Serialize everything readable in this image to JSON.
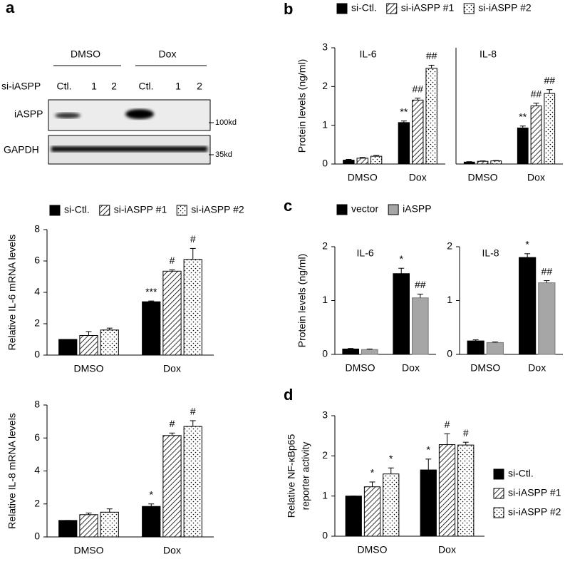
{
  "panels": [
    "a",
    "b",
    "c",
    "d"
  ],
  "blot": {
    "groups": [
      "DMSO",
      "Dox"
    ],
    "row_label": "si-iASPP",
    "lanes": [
      "Ctl.",
      "1",
      "2",
      "Ctl.",
      "1",
      "2"
    ],
    "bands": [
      "iASPP",
      "GAPDH"
    ],
    "markers": [
      "100kd",
      "35kd"
    ]
  },
  "chart_data": [
    {
      "type": "bar",
      "ylabel": "Relative IL-6 mRNA  levels",
      "categories": [
        "DMSO",
        "Dox"
      ],
      "ylim": [
        0,
        8
      ],
      "yticks": [
        0,
        2,
        4,
        6,
        8
      ],
      "legend": "top",
      "series": [
        {
          "name": "si-Ctl.",
          "color": "#000000",
          "pattern": "solid",
          "values": [
            1,
            3.4
          ],
          "errors": [
            0,
            0.05
          ],
          "labels": [
            null,
            "***"
          ]
        },
        {
          "name": "si-iASPP #1",
          "color": "#000000",
          "pattern": "hatch",
          "values": [
            1.25,
            5.35
          ],
          "errors": [
            0.25,
            0.08
          ],
          "labels": [
            null,
            "#"
          ]
        },
        {
          "name": "si-iASPP #2",
          "color": "#000000",
          "pattern": "dots",
          "values": [
            1.6,
            6.1
          ],
          "errors": [
            0.12,
            0.7
          ],
          "labels": [
            null,
            "#"
          ]
        }
      ]
    },
    {
      "type": "bar",
      "ylabel": "Relative  IL-8 mRNA  levels",
      "categories": [
        "DMSO",
        "Dox"
      ],
      "ylim": [
        0,
        8
      ],
      "yticks": [
        0,
        2,
        4,
        6,
        8
      ],
      "series": [
        {
          "name": "si-Ctl.",
          "color": "#000000",
          "pattern": "solid",
          "values": [
            1,
            1.85
          ],
          "errors": [
            0,
            0.15
          ],
          "labels": [
            null,
            "*"
          ]
        },
        {
          "name": "si-iASPP #1",
          "color": "#000000",
          "pattern": "hatch",
          "values": [
            1.35,
            6.15
          ],
          "errors": [
            0.1,
            0.15
          ],
          "labels": [
            null,
            "#"
          ]
        },
        {
          "name": "si-iASPP #2",
          "color": "#000000",
          "pattern": "dots",
          "values": [
            1.5,
            6.7
          ],
          "errors": [
            0.2,
            0.35
          ],
          "labels": [
            null,
            "#"
          ]
        }
      ]
    },
    {
      "type": "bar",
      "title": "IL-6",
      "ylabel": "Protein levels (ng/ml)",
      "categories": [
        "DMSO",
        "Dox"
      ],
      "ylim": [
        0,
        3
      ],
      "yticks": [
        0,
        1,
        2,
        3
      ],
      "legend": "top",
      "series": [
        {
          "name": "si-Ctl.",
          "color": "#000000",
          "pattern": "solid",
          "values": [
            0.1,
            1.07
          ],
          "errors": [
            0.02,
            0.04
          ],
          "labels": [
            null,
            "**"
          ]
        },
        {
          "name": "si-iASPP #1",
          "color": "#000000",
          "pattern": "hatch",
          "values": [
            0.15,
            1.65
          ],
          "errors": [
            0.02,
            0.05
          ],
          "labels": [
            null,
            "##"
          ]
        },
        {
          "name": "si-iASPP #2",
          "color": "#000000",
          "pattern": "dots",
          "values": [
            0.2,
            2.47
          ],
          "errors": [
            0.02,
            0.08
          ],
          "labels": [
            null,
            "##"
          ]
        }
      ]
    },
    {
      "type": "bar",
      "title": "IL-8",
      "categories": [
        "DMSO",
        "Dox"
      ],
      "ylim": [
        0,
        3
      ],
      "series": [
        {
          "name": "si-Ctl.",
          "color": "#000000",
          "pattern": "solid",
          "values": [
            0.05,
            0.93
          ],
          "errors": [
            0.01,
            0.05
          ],
          "labels": [
            null,
            "**"
          ]
        },
        {
          "name": "si-iASPP #1",
          "color": "#000000",
          "pattern": "hatch",
          "values": [
            0.07,
            1.5
          ],
          "errors": [
            0.01,
            0.07
          ],
          "labels": [
            null,
            "##"
          ]
        },
        {
          "name": "si-iASPP #2",
          "color": "#000000",
          "pattern": "dots",
          "values": [
            0.08,
            1.82
          ],
          "errors": [
            0.01,
            0.1
          ],
          "labels": [
            null,
            "##"
          ]
        }
      ]
    },
    {
      "type": "bar",
      "title": "IL-6",
      "ylabel": "Protein levels (ng/ml)",
      "categories": [
        "DMSO",
        "Dox"
      ],
      "ylim": [
        0,
        2
      ],
      "yticks": [
        0,
        1,
        2
      ],
      "legend": "top",
      "series": [
        {
          "name": "vector",
          "color": "#000000",
          "pattern": "solid",
          "values": [
            0.1,
            1.5
          ],
          "errors": [
            0.01,
            0.1
          ],
          "labels": [
            null,
            "*"
          ]
        },
        {
          "name": "iASPP",
          "color": "#a6a6a6",
          "pattern": "solid",
          "values": [
            0.09,
            1.05
          ],
          "errors": [
            0.01,
            0.07
          ],
          "labels": [
            null,
            "##"
          ]
        }
      ]
    },
    {
      "type": "bar",
      "title": "IL-8",
      "categories": [
        "DMSO",
        "Dox"
      ],
      "ylim": [
        0,
        2
      ],
      "yticks": [
        0,
        1,
        2
      ],
      "series": [
        {
          "name": "vector",
          "color": "#000000",
          "pattern": "solid",
          "values": [
            0.25,
            1.8
          ],
          "errors": [
            0.02,
            0.07
          ],
          "labels": [
            null,
            "*"
          ]
        },
        {
          "name": "iASPP",
          "color": "#a6a6a6",
          "pattern": "solid",
          "values": [
            0.22,
            1.33
          ],
          "errors": [
            0.01,
            0.04
          ],
          "labels": [
            null,
            "##"
          ]
        }
      ]
    },
    {
      "type": "bar",
      "ylabel": [
        "Relative NF-κBp65",
        "reporter activity"
      ],
      "categories": [
        "DMSO",
        "Dox"
      ],
      "ylim": [
        0,
        3
      ],
      "yticks": [
        0,
        1,
        2,
        3
      ],
      "legend": "right",
      "series": [
        {
          "name": "si-Ctl.",
          "color": "#000000",
          "pattern": "solid",
          "values": [
            1,
            1.65
          ],
          "errors": [
            0,
            0.27
          ],
          "labels": [
            null,
            "*"
          ]
        },
        {
          "name": "si-iASPP #1",
          "color": "#000000",
          "pattern": "hatch",
          "values": [
            1.23,
            2.28
          ],
          "errors": [
            0.12,
            0.27
          ],
          "labels": [
            "*",
            "#"
          ]
        },
        {
          "name": "si-iASPP #2",
          "color": "#000000",
          "pattern": "dots",
          "values": [
            1.55,
            2.27
          ],
          "errors": [
            0.15,
            0.07
          ],
          "labels": [
            "*",
            "#"
          ]
        }
      ]
    }
  ]
}
